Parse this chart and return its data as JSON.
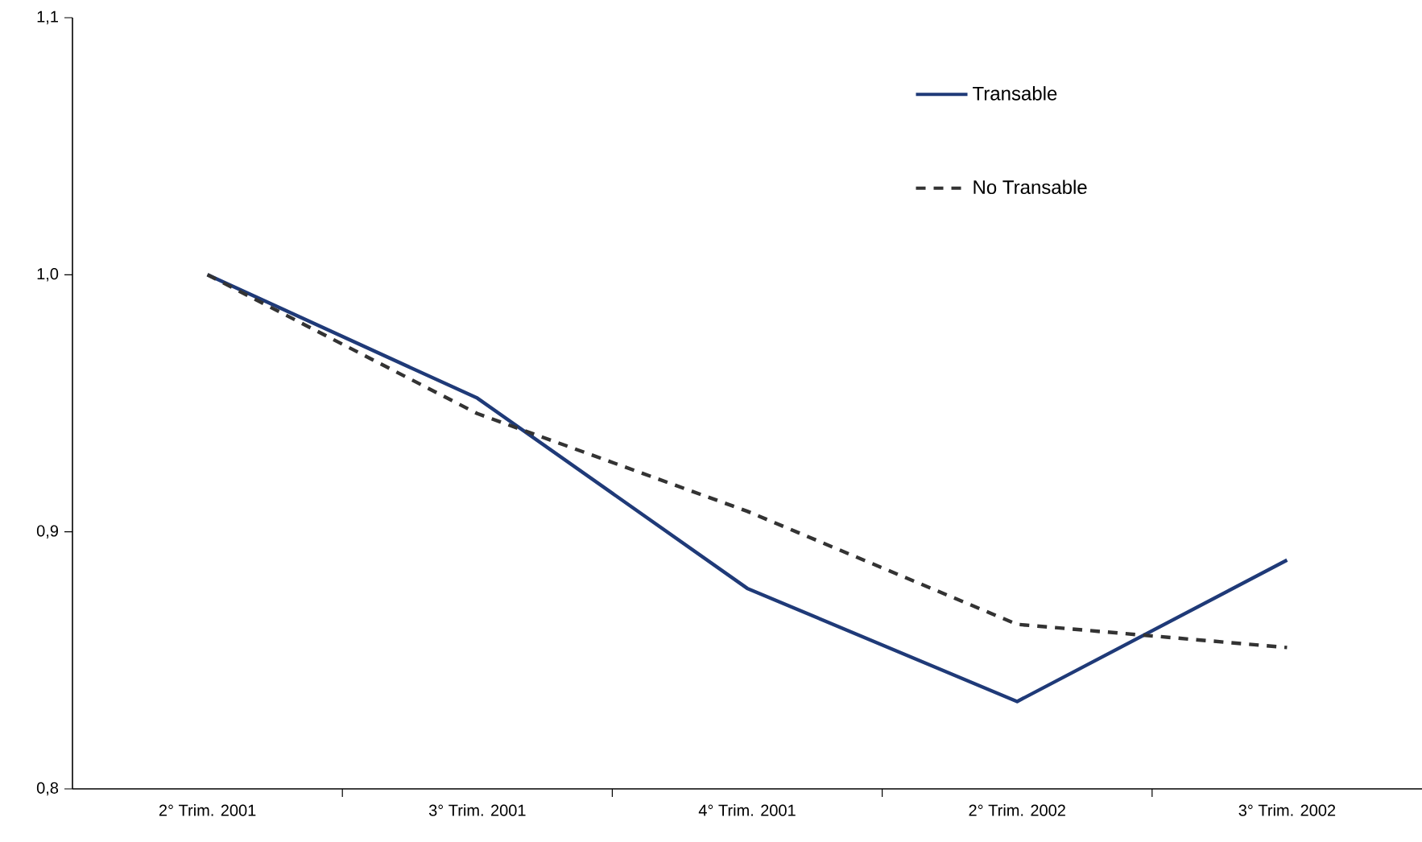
{
  "chart_data": {
    "type": "line",
    "categories": [
      "2° Trim. 2001",
      "3° Trim. 2001",
      "4° Trim. 2001",
      "2° Trim. 2002",
      "3° Trim. 2002"
    ],
    "series": [
      {
        "name": "Transable",
        "color": "#1f3a78",
        "line_style": "solid",
        "values": [
          1.0,
          0.952,
          0.878,
          0.834,
          0.889
        ]
      },
      {
        "name": "No Transable",
        "color": "#333333",
        "line_style": "dashed",
        "values": [
          1.0,
          0.946,
          0.908,
          0.864,
          0.855
        ]
      }
    ],
    "ylim": [
      0.8,
      1.1
    ],
    "yticks": [
      {
        "value": 0.8,
        "label": "0,8"
      },
      {
        "value": 0.9,
        "label": "0,9"
      },
      {
        "value": 1.0,
        "label": "1,0"
      },
      {
        "value": 1.1,
        "label": "1,1"
      }
    ],
    "grid": false,
    "legend": "top right"
  }
}
